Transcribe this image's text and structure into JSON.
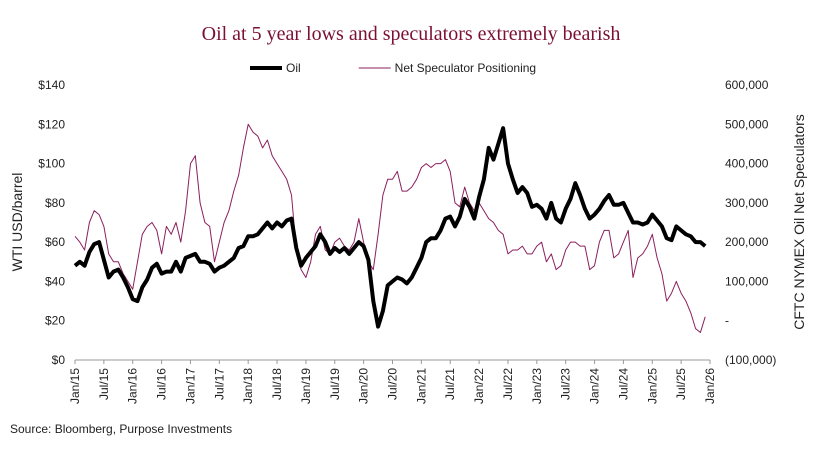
{
  "chart_data": {
    "type": "line",
    "title": "Oil at 5 year lows and speculators extremely bearish",
    "source": "Source: Bloomberg, Purpose Investments",
    "ylabel": "WTI USD/barrel",
    "y2label": "CFTC NYMEX Oil Net Speculators",
    "x": [
      "2015-01",
      "2015-02",
      "2015-03",
      "2015-04",
      "2015-05",
      "2015-06",
      "2015-07",
      "2015-08",
      "2015-09",
      "2015-10",
      "2015-11",
      "2015-12",
      "2016-01",
      "2016-02",
      "2016-03",
      "2016-04",
      "2016-05",
      "2016-06",
      "2016-07",
      "2016-08",
      "2016-09",
      "2016-10",
      "2016-11",
      "2016-12",
      "2017-01",
      "2017-02",
      "2017-03",
      "2017-04",
      "2017-05",
      "2017-06",
      "2017-07",
      "2017-08",
      "2017-09",
      "2017-10",
      "2017-11",
      "2017-12",
      "2018-01",
      "2018-02",
      "2018-03",
      "2018-04",
      "2018-05",
      "2018-06",
      "2018-07",
      "2018-08",
      "2018-09",
      "2018-10",
      "2018-11",
      "2018-12",
      "2019-01",
      "2019-02",
      "2019-03",
      "2019-04",
      "2019-05",
      "2019-06",
      "2019-07",
      "2019-08",
      "2019-09",
      "2019-10",
      "2019-11",
      "2019-12",
      "2020-01",
      "2020-02",
      "2020-03",
      "2020-04",
      "2020-05",
      "2020-06",
      "2020-07",
      "2020-08",
      "2020-09",
      "2020-10",
      "2020-11",
      "2020-12",
      "2021-01",
      "2021-02",
      "2021-03",
      "2021-04",
      "2021-05",
      "2021-06",
      "2021-07",
      "2021-08",
      "2021-09",
      "2021-10",
      "2021-11",
      "2021-12",
      "2022-01",
      "2022-02",
      "2022-03",
      "2022-04",
      "2022-05",
      "2022-06",
      "2022-07",
      "2022-08",
      "2022-09",
      "2022-10",
      "2022-11",
      "2022-12",
      "2023-01",
      "2023-02",
      "2023-03",
      "2023-04",
      "2023-05",
      "2023-06",
      "2023-07",
      "2023-08",
      "2023-09",
      "2023-10",
      "2023-11",
      "2023-12",
      "2024-01",
      "2024-02",
      "2024-03",
      "2024-04",
      "2024-05",
      "2024-06",
      "2024-07",
      "2024-08",
      "2024-09",
      "2024-10",
      "2024-11",
      "2024-12",
      "2025-01",
      "2025-02",
      "2025-03",
      "2025-04",
      "2025-05",
      "2025-06",
      "2025-07",
      "2025-08",
      "2025-09",
      "2025-10",
      "2025-11",
      "2025-12"
    ],
    "xlim": [
      "2015-01",
      "2026-01"
    ],
    "xticks": [
      {
        "value": "2015-01",
        "label": "Jan/15"
      },
      {
        "value": "2015-07",
        "label": "Jul/15"
      },
      {
        "value": "2016-01",
        "label": "Jan/16"
      },
      {
        "value": "2016-07",
        "label": "Jul/16"
      },
      {
        "value": "2017-01",
        "label": "Jan/17"
      },
      {
        "value": "2017-07",
        "label": "Jul/17"
      },
      {
        "value": "2018-01",
        "label": "Jan/18"
      },
      {
        "value": "2018-07",
        "label": "Jul/18"
      },
      {
        "value": "2019-01",
        "label": "Jan/19"
      },
      {
        "value": "2019-07",
        "label": "Jul/19"
      },
      {
        "value": "2020-01",
        "label": "Jan/20"
      },
      {
        "value": "2020-07",
        "label": "Jul/20"
      },
      {
        "value": "2021-01",
        "label": "Jan/21"
      },
      {
        "value": "2021-07",
        "label": "Jul/21"
      },
      {
        "value": "2022-01",
        "label": "Jan/22"
      },
      {
        "value": "2022-07",
        "label": "Jul/22"
      },
      {
        "value": "2023-01",
        "label": "Jan/23"
      },
      {
        "value": "2023-07",
        "label": "Jul/23"
      },
      {
        "value": "2024-01",
        "label": "Jan/24"
      },
      {
        "value": "2024-07",
        "label": "Jul/24"
      },
      {
        "value": "2025-01",
        "label": "Jan/25"
      },
      {
        "value": "2025-07",
        "label": "Jul/25"
      },
      {
        "value": "2026-01",
        "label": "Jan/26"
      }
    ],
    "ylim": [
      0,
      140
    ],
    "yticks": [
      {
        "value": 0,
        "label": "$0"
      },
      {
        "value": 20,
        "label": "$20"
      },
      {
        "value": 40,
        "label": "$40"
      },
      {
        "value": 60,
        "label": "$60"
      },
      {
        "value": 80,
        "label": "$80"
      },
      {
        "value": 100,
        "label": "$100"
      },
      {
        "value": 120,
        "label": "$120"
      },
      {
        "value": 140,
        "label": "$140"
      }
    ],
    "y2lim": [
      -100000,
      600000
    ],
    "y2ticks": [
      {
        "value": -100000,
        "label": "(100,000)"
      },
      {
        "value": 0,
        "label": "-"
      },
      {
        "value": 100000,
        "label": "100,000"
      },
      {
        "value": 200000,
        "label": "200,000"
      },
      {
        "value": 300000,
        "label": "300,000"
      },
      {
        "value": 400000,
        "label": "400,000"
      },
      {
        "value": 500000,
        "label": "500,000"
      },
      {
        "value": 600000,
        "label": "600,000"
      }
    ],
    "series": [
      {
        "name": "Oil",
        "color": "#000000",
        "values": [
          48,
          50,
          48,
          55,
          59,
          60,
          51,
          42,
          45,
          46,
          42,
          37,
          31,
          30,
          37,
          41,
          47,
          49,
          44,
          45,
          45,
          50,
          45,
          52,
          53,
          54,
          50,
          50,
          49,
          45,
          47,
          48,
          50,
          52,
          57,
          58,
          63,
          63,
          64,
          67,
          70,
          67,
          70,
          68,
          71,
          72,
          57,
          48,
          52,
          55,
          58,
          64,
          60,
          54,
          57,
          55,
          57,
          54,
          57,
          60,
          58,
          51,
          30,
          17,
          25,
          38,
          40,
          42,
          41,
          39,
          42,
          47,
          52,
          60,
          62,
          62,
          66,
          72,
          73,
          68,
          73,
          82,
          78,
          72,
          83,
          92,
          108,
          102,
          110,
          118,
          100,
          92,
          85,
          88,
          85,
          78,
          79,
          77,
          72,
          80,
          72,
          70,
          77,
          82,
          90,
          84,
          77,
          72,
          74,
          77,
          81,
          84,
          79,
          79,
          80,
          75,
          70,
          70,
          69,
          70,
          74,
          71,
          68,
          62,
          61,
          68,
          66,
          64,
          63,
          60,
          60,
          58
        ]
      },
      {
        "name": "Net Speculator Positioning",
        "color": "#8b1f5e",
        "axis": "y2",
        "values": [
          215000,
          200000,
          180000,
          250000,
          280000,
          270000,
          240000,
          170000,
          150000,
          150000,
          120000,
          100000,
          80000,
          150000,
          220000,
          240000,
          250000,
          230000,
          170000,
          240000,
          220000,
          250000,
          200000,
          280000,
          400000,
          420000,
          300000,
          250000,
          240000,
          150000,
          200000,
          250000,
          280000,
          330000,
          370000,
          440000,
          500000,
          480000,
          470000,
          440000,
          460000,
          420000,
          400000,
          380000,
          360000,
          320000,
          180000,
          130000,
          110000,
          150000,
          220000,
          240000,
          180000,
          170000,
          200000,
          210000,
          190000,
          180000,
          200000,
          260000,
          200000,
          150000,
          130000,
          220000,
          320000,
          360000,
          360000,
          380000,
          330000,
          330000,
          340000,
          360000,
          390000,
          400000,
          390000,
          400000,
          400000,
          410000,
          380000,
          300000,
          290000,
          340000,
          300000,
          280000,
          300000,
          280000,
          260000,
          250000,
          230000,
          220000,
          170000,
          180000,
          180000,
          190000,
          170000,
          170000,
          190000,
          200000,
          150000,
          170000,
          130000,
          140000,
          180000,
          200000,
          200000,
          190000,
          190000,
          130000,
          140000,
          200000,
          230000,
          230000,
          160000,
          170000,
          200000,
          230000,
          110000,
          160000,
          170000,
          190000,
          220000,
          160000,
          120000,
          50000,
          70000,
          100000,
          70000,
          50000,
          20000,
          -20000,
          -30000,
          10000
        ]
      }
    ]
  }
}
